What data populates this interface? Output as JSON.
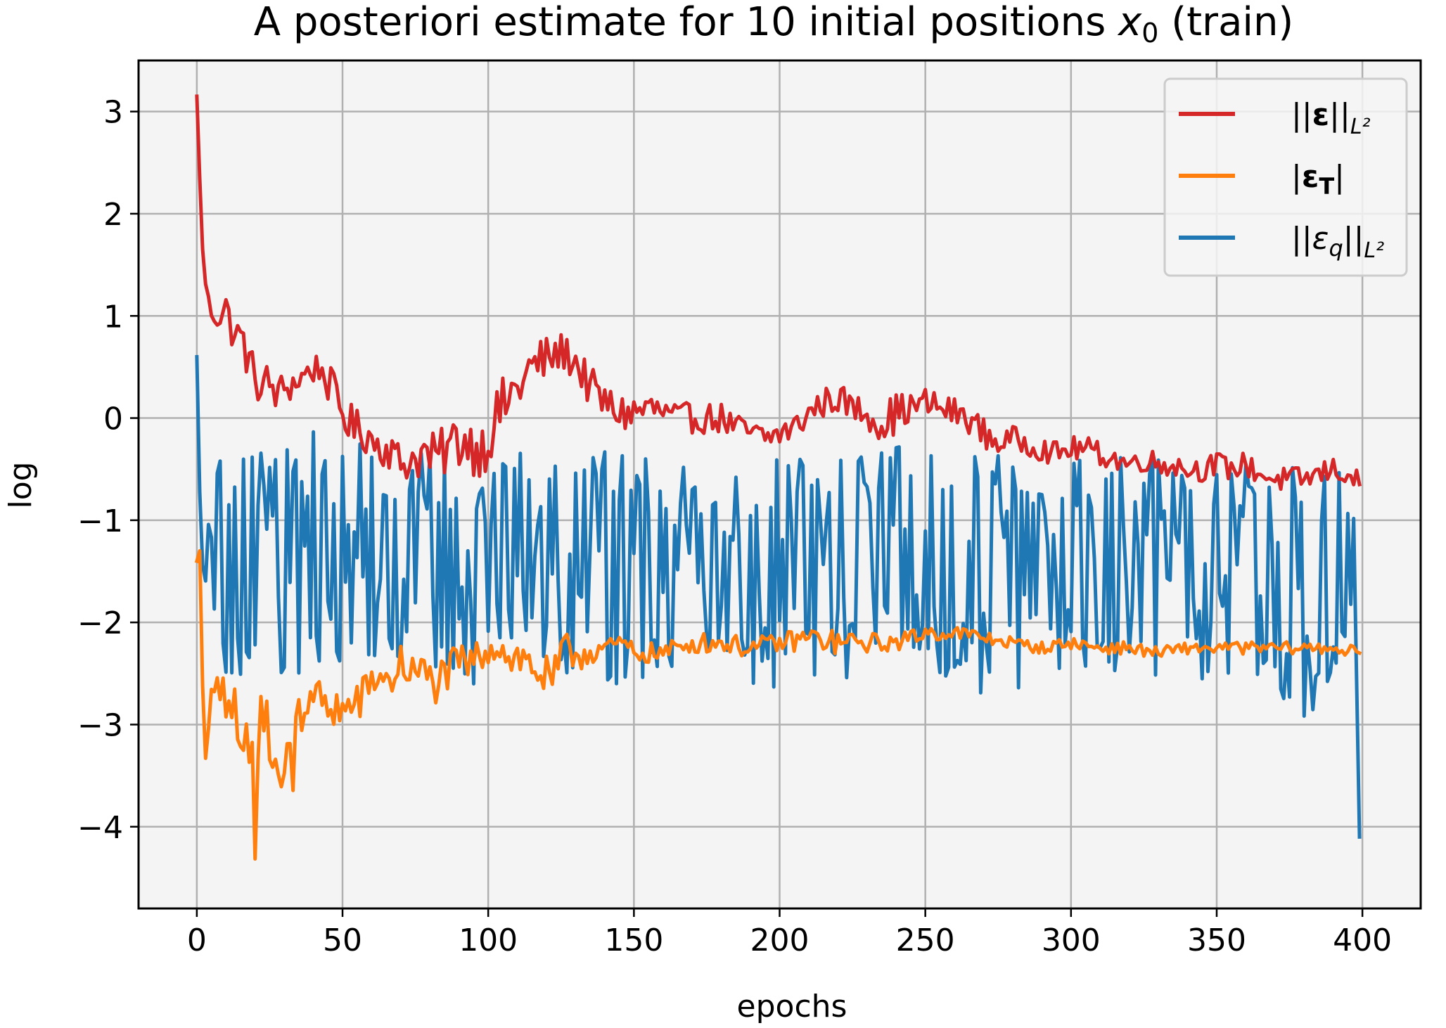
{
  "chart_data": {
    "type": "line",
    "title": "A posteriori estimate for 10 initial positions x₀ (train)",
    "title_parts": {
      "before": "A posteriori estimate for 10 initial positions ",
      "var": "x",
      "sub": "0",
      "after": " (train)"
    },
    "xlabel": "epochs",
    "ylabel": "log",
    "xlim": [
      -20,
      420
    ],
    "ylim": [
      -4.8,
      3.5
    ],
    "xticks": [
      0,
      50,
      100,
      150,
      200,
      250,
      300,
      350,
      400
    ],
    "xtick_labels": [
      "0",
      "50",
      "100",
      "150",
      "200",
      "250",
      "300",
      "350",
      "400"
    ],
    "yticks": [
      -4,
      -3,
      -2,
      -1,
      0,
      1,
      2,
      3
    ],
    "ytick_labels": [
      "−4",
      "−3",
      "−2",
      "−1",
      "0",
      "1",
      "2",
      "3"
    ],
    "grid": true,
    "legend_placement": "upper right",
    "plot_background": "#f4f4f4",
    "series": [
      {
        "name": "||ε||_{L²}",
        "legend": {
          "pre": "||",
          "main": "ε",
          "main_bold": true,
          "sub": "",
          "post": "||",
          "tail": "L²"
        },
        "color": "#d62728",
        "x": [
          0,
          2,
          4,
          6,
          8,
          10,
          12,
          14,
          16,
          18,
          20,
          22,
          24,
          26,
          28,
          30,
          34,
          38,
          42,
          46,
          50,
          54,
          58,
          62,
          66,
          70,
          74,
          78,
          82,
          86,
          90,
          94,
          98,
          102,
          106,
          110,
          114,
          118,
          122,
          126,
          130,
          134,
          138,
          142,
          146,
          150,
          155,
          160,
          165,
          170,
          175,
          180,
          185,
          190,
          195,
          200,
          205,
          210,
          215,
          220,
          225,
          230,
          235,
          240,
          245,
          250,
          255,
          260,
          265,
          270,
          275,
          280,
          285,
          290,
          295,
          300,
          305,
          310,
          315,
          320,
          325,
          330,
          335,
          340,
          345,
          350,
          355,
          360,
          365,
          370,
          375,
          380,
          385,
          390,
          395,
          399
        ],
        "y": [
          3.15,
          1.6,
          1.1,
          1.05,
          1.0,
          1.1,
          0.85,
          0.8,
          0.75,
          0.5,
          0.45,
          0.25,
          0.35,
          0.3,
          0.2,
          0.3,
          0.35,
          0.45,
          0.5,
          0.3,
          0.05,
          -0.1,
          -0.15,
          -0.25,
          -0.3,
          -0.45,
          -0.4,
          -0.35,
          -0.4,
          -0.3,
          -0.2,
          -0.25,
          -0.3,
          -0.05,
          0.15,
          0.3,
          0.45,
          0.55,
          0.6,
          0.65,
          0.55,
          0.35,
          0.2,
          0.1,
          0.05,
          0.05,
          0.1,
          0.05,
          0.0,
          0.0,
          0.0,
          0.0,
          -0.1,
          -0.15,
          -0.2,
          -0.15,
          -0.1,
          0.05,
          0.15,
          0.2,
          0.1,
          0.05,
          -0.05,
          0.05,
          0.1,
          0.15,
          0.1,
          0.05,
          0.0,
          -0.15,
          -0.25,
          -0.2,
          -0.25,
          -0.3,
          -0.35,
          -0.3,
          -0.3,
          -0.35,
          -0.4,
          -0.45,
          -0.4,
          -0.45,
          -0.45,
          -0.5,
          -0.5,
          -0.45,
          -0.5,
          -0.45,
          -0.55,
          -0.6,
          -0.6,
          -0.6,
          -0.55,
          -0.5,
          -0.55,
          -0.65
        ],
        "amp": [
          0,
          0.1,
          0.15,
          0.2,
          0.15,
          0.15,
          0.15,
          0.2,
          0.2,
          0.2,
          0.2,
          0.2,
          0.2,
          0.2,
          0.2,
          0.2,
          0.15,
          0.15,
          0.15,
          0.2,
          0.2,
          0.2,
          0.2,
          0.2,
          0.2,
          0.2,
          0.2,
          0.25,
          0.25,
          0.25,
          0.3,
          0.3,
          0.3,
          0.3,
          0.3,
          0.3,
          0.3,
          0.25,
          0.2,
          0.2,
          0.2,
          0.2,
          0.2,
          0.2,
          0.2,
          0.2,
          0.2,
          0.15,
          0.15,
          0.15,
          0.15,
          0.15,
          0.15,
          0.15,
          0.15,
          0.15,
          0.15,
          0.15,
          0.15,
          0.15,
          0.15,
          0.15,
          0.2,
          0.2,
          0.15,
          0.15,
          0.15,
          0.15,
          0.15,
          0.15,
          0.12,
          0.12,
          0.12,
          0.12,
          0.12,
          0.12,
          0.12,
          0.12,
          0.12,
          0.12,
          0.12,
          0.12,
          0.12,
          0.12,
          0.12,
          0.12,
          0.12,
          0.12,
          0.12,
          0.12,
          0.12,
          0.12,
          0.12,
          0.12,
          0.12,
          0.12
        ]
      },
      {
        "name": "|ε_T|",
        "legend": {
          "pre": "|",
          "main": "ε",
          "main_bold": true,
          "sub": "T",
          "post": "|",
          "tail": ""
        },
        "color": "#ff7f0e",
        "x": [
          0,
          1,
          2,
          4,
          6,
          8,
          10,
          12,
          14,
          16,
          18,
          20,
          22,
          24,
          26,
          28,
          30,
          32,
          34,
          36,
          38,
          40,
          42,
          44,
          46,
          48,
          50,
          54,
          58,
          62,
          66,
          70,
          74,
          78,
          82,
          86,
          90,
          94,
          98,
          102,
          106,
          110,
          114,
          118,
          122,
          126,
          130,
          134,
          138,
          142,
          146,
          150,
          160,
          170,
          180,
          190,
          200,
          210,
          220,
          230,
          240,
          250,
          260,
          270,
          280,
          290,
          300,
          310,
          320,
          330,
          340,
          350,
          360,
          370,
          380,
          390,
          399
        ],
        "y": [
          -1.4,
          -1.3,
          -2.6,
          -2.7,
          -2.9,
          -2.8,
          -2.8,
          -2.7,
          -3.0,
          -3.3,
          -3.6,
          -3.4,
          -3.1,
          -3.0,
          -3.0,
          -3.1,
          -3.3,
          -3.2,
          -3.1,
          -2.9,
          -2.7,
          -2.6,
          -2.8,
          -2.9,
          -2.8,
          -2.8,
          -2.9,
          -2.8,
          -2.7,
          -2.5,
          -2.6,
          -2.4,
          -2.5,
          -2.5,
          -2.6,
          -2.5,
          -2.4,
          -2.4,
          -2.3,
          -2.2,
          -2.3,
          -2.35,
          -2.4,
          -2.5,
          -2.6,
          -2.3,
          -2.3,
          -2.3,
          -2.25,
          -2.25,
          -2.2,
          -2.3,
          -2.3,
          -2.2,
          -2.2,
          -2.25,
          -2.2,
          -2.15,
          -2.2,
          -2.2,
          -2.2,
          -2.1,
          -2.1,
          -2.15,
          -2.2,
          -2.25,
          -2.2,
          -2.25,
          -2.25,
          -2.3,
          -2.25,
          -2.25,
          -2.25,
          -2.25,
          -2.25,
          -2.25,
          -2.3
        ],
        "amp": [
          0,
          0,
          0.3,
          0.35,
          0.35,
          0.4,
          0.45,
          0.5,
          0.55,
          0.6,
          0.55,
          0.5,
          0.45,
          0.45,
          0.45,
          0.45,
          0.5,
          0.45,
          0.4,
          0.35,
          0.3,
          0.3,
          0.3,
          0.3,
          0.25,
          0.25,
          0.25,
          0.25,
          0.2,
          0.2,
          0.2,
          0.2,
          0.2,
          0.2,
          0.2,
          0.2,
          0.2,
          0.18,
          0.18,
          0.18,
          0.2,
          0.22,
          0.22,
          0.22,
          0.22,
          0.2,
          0.18,
          0.15,
          0.12,
          0.1,
          0.1,
          0.1,
          0.1,
          0.1,
          0.1,
          0.1,
          0.1,
          0.12,
          0.12,
          0.1,
          0.08,
          0.08,
          0.08,
          0.07,
          0.06,
          0.06,
          0.06,
          0.06,
          0.06,
          0.06,
          0.06,
          0.06,
          0.06,
          0.06,
          0.06,
          0.06,
          0.06
        ]
      },
      {
        "name": "||ε_q||_{L²}",
        "legend": {
          "pre": "||",
          "main": "ε",
          "main_bold": false,
          "sub": "q",
          "post": "||",
          "tail": "L²"
        },
        "color": "#1f77b4",
        "x": [
          0,
          1,
          2,
          4,
          6,
          10,
          20,
          30,
          40,
          50,
          60,
          70,
          80,
          90,
          100,
          110,
          120,
          130,
          140,
          150,
          160,
          170,
          180,
          190,
          200,
          210,
          220,
          230,
          240,
          250,
          260,
          270,
          280,
          290,
          300,
          310,
          320,
          330,
          340,
          350,
          360,
          370,
          380,
          390,
          397,
          399
        ],
        "y": [
          0.6,
          -0.9,
          -0.8,
          -1.2,
          -1.3,
          -1.4,
          -1.4,
          -1.3,
          -1.2,
          -1.4,
          -1.3,
          -1.4,
          -1.4,
          -1.5,
          -1.5,
          -1.4,
          -1.4,
          -1.4,
          -1.5,
          -1.5,
          -1.4,
          -1.4,
          -1.4,
          -1.5,
          -1.6,
          -1.6,
          -1.5,
          -1.4,
          -1.3,
          -1.3,
          -1.5,
          -1.5,
          -1.5,
          -1.5,
          -1.5,
          -1.4,
          -1.4,
          -1.5,
          -1.5,
          -1.5,
          -1.5,
          -1.5,
          -1.6,
          -1.6,
          -1.8,
          -4.1
        ],
        "amp": [
          0,
          0.3,
          0.6,
          0.8,
          0.9,
          1.0,
          1.1,
          1.2,
          1.1,
          1.0,
          1.0,
          1.0,
          1.0,
          1.1,
          1.0,
          1.0,
          1.0,
          1.0,
          1.1,
          1.1,
          1.0,
          1.0,
          1.0,
          1.1,
          1.1,
          1.1,
          1.0,
          1.0,
          1.0,
          1.0,
          1.0,
          1.1,
          1.1,
          1.0,
          1.0,
          1.0,
          1.0,
          1.0,
          1.0,
          1.0,
          1.0,
          1.1,
          1.2,
          1.2,
          0.8,
          0
        ]
      }
    ]
  }
}
